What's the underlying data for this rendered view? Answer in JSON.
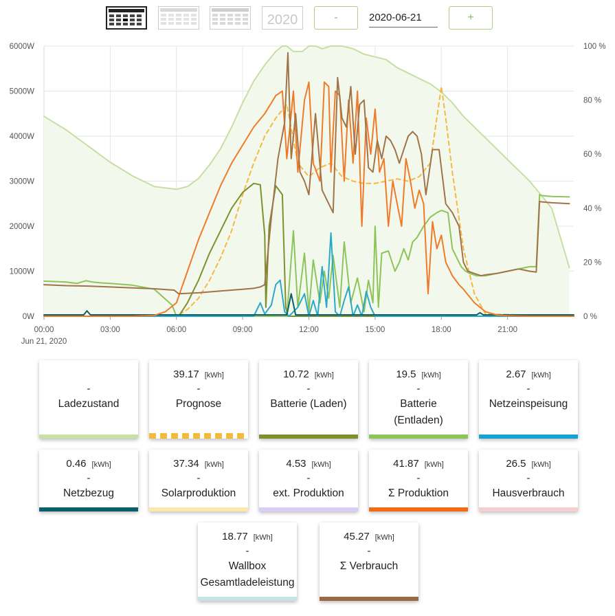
{
  "toolbar": {
    "buttons": [
      {
        "name": "day-view-button",
        "active": true
      },
      {
        "name": "month-view-button",
        "active": false
      },
      {
        "name": "multi-month-view-button",
        "active": false
      }
    ],
    "year_label": "2020",
    "minus_label": "-",
    "date_value": "2020-06-21",
    "plus_label": "+"
  },
  "chart_data": {
    "type": "line",
    "x_ticks": [
      "00:00",
      "03:00",
      "06:00",
      "09:00",
      "12:00",
      "15:00",
      "18:00",
      "21:00"
    ],
    "x_sub_label": "Jun 21, 2020",
    "y_ticks_left": [
      "0W",
      "1000W",
      "2000W",
      "3000W",
      "4000W",
      "5000W",
      "6000W"
    ],
    "y_ticks_right": [
      "0 %",
      "20 %",
      "40 %",
      "60 %",
      "80 %",
      "100 %"
    ],
    "ylim_left": [
      0,
      6000
    ],
    "ylim_right": [
      0,
      100
    ],
    "x_unit": "hours",
    "xlim": [
      0,
      24
    ],
    "grid": true,
    "series": [
      {
        "name": "Ladezustand",
        "axis": "right",
        "color": "#c6dea6",
        "fill": true,
        "x": [
          0,
          1,
          2,
          3,
          4,
          5,
          6,
          6.5,
          7,
          7.5,
          8,
          8.5,
          9,
          9.5,
          10,
          10.5,
          10.8,
          11,
          11.3,
          11.7,
          12,
          12.3,
          12.6,
          13,
          13.5,
          14,
          14.5,
          15,
          15.5,
          16,
          16.5,
          17,
          17.5,
          18,
          18.5,
          19,
          19.5,
          20,
          21,
          22,
          23,
          23.8
        ],
        "y": [
          74,
          69,
          63,
          57,
          52,
          48,
          47,
          48,
          51,
          56,
          62,
          70,
          79,
          87,
          93,
          98,
          100,
          100,
          98,
          98,
          100,
          100,
          99,
          100,
          100,
          99,
          97,
          96,
          95,
          92,
          90,
          88,
          86,
          83,
          79,
          74,
          70,
          66,
          58,
          50,
          40,
          18
        ]
      },
      {
        "name": "Prognose",
        "axis": "left",
        "color": "#f5b942",
        "dashed": true,
        "x": [
          0,
          6,
          6.5,
          7,
          7.5,
          8,
          8.5,
          9,
          9.5,
          10,
          10.5,
          11,
          11.5,
          12,
          12.5,
          13,
          13.5,
          14,
          14.5,
          15,
          15.5,
          16,
          16.5,
          17,
          17.5,
          18,
          18.2,
          18.5,
          19,
          19.5,
          20,
          24
        ],
        "y": [
          0,
          0,
          150,
          400,
          800,
          1300,
          1900,
          2700,
          3400,
          4000,
          4400,
          4700,
          3400,
          3100,
          3300,
          3400,
          3100,
          3000,
          2950,
          2950,
          3000,
          3050,
          3000,
          3100,
          3400,
          5100,
          4400,
          3200,
          1500,
          500,
          50,
          0
        ]
      },
      {
        "name": "Batterie (Laden)",
        "axis": "left",
        "color": "#7e8f2f",
        "x": [
          0,
          5.9,
          6.1,
          6.5,
          7,
          7.5,
          8,
          8.5,
          9,
          9.5,
          9.8,
          10,
          10.05,
          10.2,
          10.5,
          10.8,
          10.95,
          11.05,
          11.2,
          12,
          24
        ],
        "y": [
          0,
          0,
          0,
          300,
          800,
          1400,
          1900,
          2400,
          2750,
          2950,
          2920,
          1800,
          200,
          2000,
          2900,
          2700,
          200,
          0,
          0,
          0,
          0
        ]
      },
      {
        "name": "Batterie (Entladen)",
        "axis": "left",
        "color": "#8cc45a",
        "x": [
          0,
          1,
          1.5,
          1.9,
          2.2,
          2.6,
          3,
          4,
          5,
          5.8,
          6.0,
          11.0,
          11.3,
          11.5,
          11.8,
          12.0,
          12.2,
          12.5,
          12.7,
          12.9,
          13.1,
          13.4,
          13.6,
          13.9,
          14.2,
          14.5,
          14.7,
          14.9,
          15.0,
          15.15,
          15.3,
          15.6,
          15.9,
          16.1,
          16.3,
          16.5,
          16.7,
          16.9,
          17.2,
          17.5,
          17.8,
          18.0,
          18.3,
          18.5,
          18.7,
          18.9,
          19.1,
          19.3,
          19.6,
          20,
          20.5,
          21,
          21.5,
          22,
          22.3,
          22.45,
          22.55,
          23,
          23.8
        ],
        "y": [
          780,
          760,
          730,
          790,
          760,
          740,
          730,
          690,
          600,
          250,
          0,
          0,
          1900,
          200,
          1400,
          100,
          1250,
          300,
          1000,
          400,
          1350,
          200,
          1650,
          300,
          850,
          100,
          800,
          300,
          2000,
          200,
          1400,
          1450,
          1000,
          1200,
          1500,
          1250,
          1650,
          1750,
          2000,
          2200,
          2300,
          2350,
          2300,
          1500,
          1300,
          1100,
          1000,
          950,
          900,
          900,
          950,
          1000,
          1050,
          1100,
          1100,
          2700,
          2680,
          2660,
          2650
        ]
      },
      {
        "name": "Netzeinspeisung",
        "axis": "left",
        "color": "#2aa8c8",
        "x": [
          0,
          9.5,
          9.8,
          10,
          10.3,
          10.5,
          10.7,
          10.9,
          11.1,
          11.5,
          11.8,
          12.0,
          12.2,
          12.4,
          12.6,
          12.8,
          13.0,
          13.2,
          13.4,
          13.6,
          13.8,
          14.0,
          14.2,
          14.4,
          14.6,
          14.8,
          15.0,
          24
        ],
        "y": [
          0,
          0,
          300,
          50,
          250,
          700,
          800,
          100,
          0,
          200,
          500,
          0,
          350,
          0,
          1100,
          200,
          1850,
          100,
          0,
          350,
          650,
          0,
          250,
          0,
          550,
          200,
          0,
          0
        ]
      },
      {
        "name": "Netzbezug",
        "axis": "left",
        "color": "#0c5e6a",
        "x": [
          0,
          1.8,
          1.95,
          2.1,
          11.0,
          11.2,
          11.4,
          11.6,
          12.0,
          19.6,
          19.75,
          19.9,
          24
        ],
        "y": [
          30,
          30,
          120,
          30,
          30,
          500,
          30,
          30,
          30,
          30,
          80,
          30,
          30
        ]
      },
      {
        "name": "Σ Produktion",
        "axis": "left",
        "color": "#ef7a2a",
        "x": [
          0,
          4,
          5,
          5.5,
          6,
          6.5,
          7,
          7.5,
          8,
          8.5,
          9,
          9.5,
          10,
          10.5,
          10.8,
          11.0,
          11.3,
          11.5,
          11.8,
          12.0,
          12.2,
          12.5,
          12.7,
          12.9,
          13.0,
          13.2,
          13.4,
          13.6,
          13.8,
          14.0,
          14.2,
          14.4,
          14.6,
          14.8,
          15.0,
          15.2,
          15.4,
          15.6,
          15.8,
          16.0,
          16.2,
          16.4,
          16.6,
          16.8,
          17.0,
          17.2,
          17.4,
          17.6,
          17.8,
          18.0,
          18.2,
          18.5,
          18.8,
          19.0,
          19.5,
          20,
          20.5,
          21,
          22,
          23,
          24
        ],
        "y": [
          0,
          0,
          20,
          100,
          300,
          1000,
          1700,
          2300,
          2900,
          3400,
          3800,
          4200,
          4500,
          4900,
          5000,
          3500,
          5000,
          3200,
          4800,
          5200,
          3400,
          3000,
          5200,
          5100,
          3200,
          5000,
          4900,
          3000,
          4800,
          3400,
          5000,
          2000,
          4400,
          3600,
          4600,
          3200,
          3500,
          2000,
          3000,
          2500,
          2000,
          3500,
          3000,
          2400,
          2800,
          2500,
          500,
          2100,
          1500,
          1800,
          1200,
          900,
          700,
          600,
          300,
          100,
          30,
          10,
          0,
          0,
          0
        ]
      },
      {
        "name": "Hausverbrauch",
        "axis": "left",
        "color": "#a0744a",
        "x": [
          0,
          1,
          2,
          3,
          4,
          5,
          5.9,
          6.1,
          7,
          8,
          9,
          9.5,
          9.8,
          10.0,
          10.3,
          10.6,
          10.9,
          11.05,
          11.2,
          11.4,
          11.6,
          11.8,
          12.0,
          12.3,
          12.6,
          12.9,
          13.1,
          13.3,
          13.5,
          13.7,
          13.9,
          14.1,
          14.3,
          14.5,
          14.7,
          14.9,
          15.1,
          15.3,
          15.5,
          15.7,
          15.9,
          16.1,
          16.3,
          16.5,
          16.7,
          16.9,
          17.1,
          17.3,
          17.6,
          17.9,
          18.2,
          18.5,
          18.8,
          19.0,
          19.2,
          19.5,
          19.8,
          20,
          20.5,
          21,
          21.5,
          22,
          22.3,
          22.45,
          22.55,
          23,
          23.8
        ],
        "y": [
          700,
          680,
          670,
          650,
          630,
          610,
          580,
          500,
          520,
          560,
          600,
          620,
          650,
          700,
          2200,
          3500,
          4300,
          5850,
          3500,
          4500,
          3200,
          3000,
          2700,
          4500,
          2800,
          2500,
          2300,
          5300,
          4400,
          4200,
          5100,
          3600,
          4700,
          4800,
          3300,
          3200,
          3900,
          3500,
          4000,
          3900,
          3700,
          3400,
          3700,
          4000,
          4100,
          4000,
          3600,
          2700,
          3700,
          3700,
          2500,
          2300,
          2000,
          1200,
          1000,
          950,
          900,
          920,
          950,
          1000,
          1050,
          1000,
          980,
          2550,
          2540,
          2520,
          2500
        ]
      }
    ]
  },
  "cards": [
    {
      "value": "",
      "unit": "",
      "dash": "-",
      "label": "Ladezustand",
      "color": "#c9dfa8",
      "pattern": "solid"
    },
    {
      "value": "39.17",
      "unit": "[kWh]",
      "dash": "-",
      "label": "Prognose",
      "color": "#f5b942",
      "pattern": "dashed"
    },
    {
      "value": "10.72",
      "unit": "[kWh]",
      "dash": "-",
      "label": "Batterie (Laden)",
      "color": "#7e8f2f",
      "pattern": "solid"
    },
    {
      "value": "19.5",
      "unit": "[kWh]",
      "dash": "-",
      "label": "Batterie (Entladen)",
      "color": "#8cc45a",
      "pattern": "solid"
    },
    {
      "value": "2.67",
      "unit": "[kWh]",
      "dash": "-",
      "label": "Netzeinspeisung",
      "color": "#17a2cf",
      "pattern": "solid"
    },
    {
      "value": "0.46",
      "unit": "[kWh]",
      "dash": "-",
      "label": "Netzbezug",
      "color": "#0c5e6a",
      "pattern": "solid"
    },
    {
      "value": "37.34",
      "unit": "[kWh]",
      "dash": "-",
      "label": "Solarproduktion",
      "color": "#fde6b0",
      "pattern": "solid"
    },
    {
      "value": "4.53",
      "unit": "[kWh]",
      "dash": "-",
      "label": "ext. Produktion",
      "color": "#d9ccf5",
      "pattern": "solid"
    },
    {
      "value": "41.87",
      "unit": "[kWh]",
      "dash": "-",
      "label": "Σ Produktion",
      "color": "#ef6c12",
      "pattern": "solid"
    },
    {
      "value": "26.5",
      "unit": "[kWh]",
      "dash": "-",
      "label": "Hausverbrauch",
      "color": "#f3cfcf",
      "pattern": "solid"
    },
    {
      "value": "18.77",
      "unit": "[kWh]",
      "dash": "-",
      "label": "Wallbox Gesamtladeleistung",
      "color": "#c6e4e6",
      "pattern": "solid"
    },
    {
      "value": "45.27",
      "unit": "[kWh]",
      "dash": "-",
      "label": "Σ Verbrauch",
      "color": "#9b6a45",
      "pattern": "solid"
    }
  ]
}
